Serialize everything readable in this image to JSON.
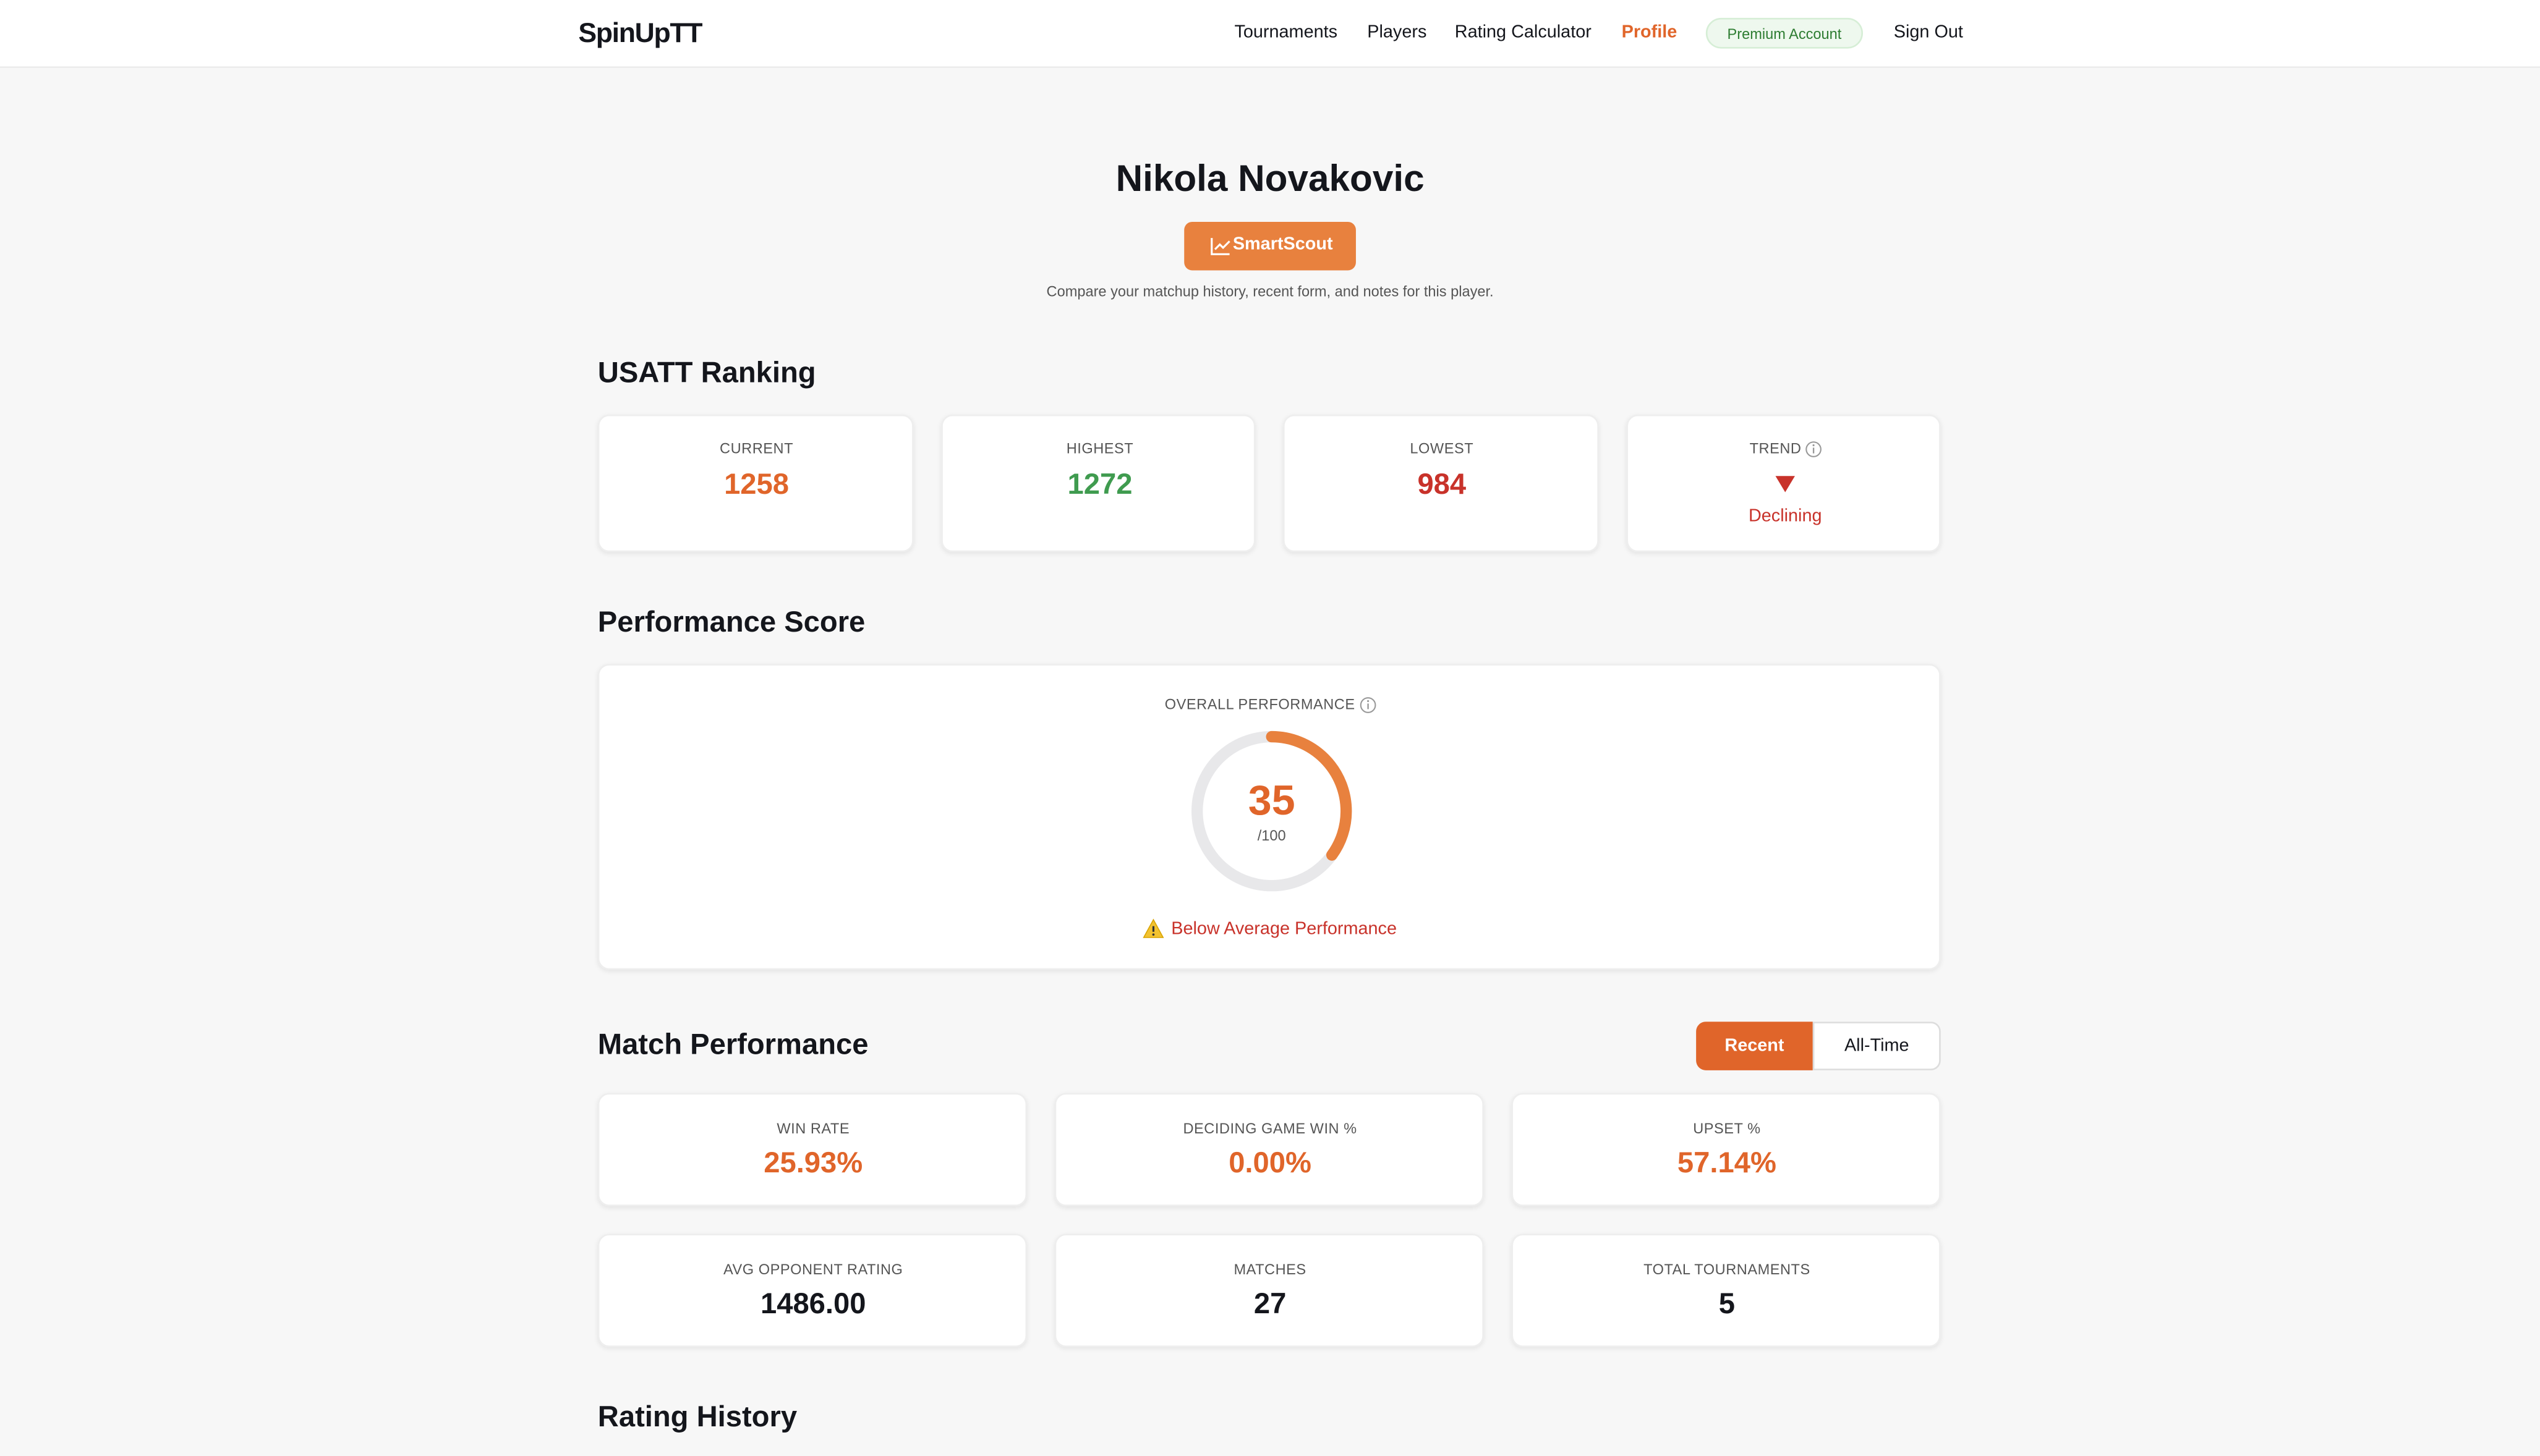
{
  "nav": {
    "logo": "SpinUpTT",
    "links": [
      "Tournaments",
      "Players",
      "Rating Calculator",
      "Profile"
    ],
    "badge": "Premium Account",
    "sign_out": "Sign Out"
  },
  "profile": {
    "name": "Nikola Novakovic",
    "button": "SmartScout",
    "subtitle": "Compare your matchup history, recent form, and notes for this player."
  },
  "ranking": {
    "title": "USATT Ranking",
    "cards": [
      {
        "label": "CURRENT",
        "value": "1258"
      },
      {
        "label": "HIGHEST",
        "value": "1272"
      },
      {
        "label": "LOWEST",
        "value": "984"
      },
      {
        "label": "TREND",
        "status": "Declining"
      }
    ]
  },
  "performance": {
    "title": "Performance Score",
    "label": "OVERALL PERFORMANCE",
    "score": "35",
    "max": "/100",
    "status": "Below Average Performance"
  },
  "match": {
    "title": "Match Performance",
    "tabs": [
      "Recent",
      "All-Time"
    ],
    "stats": [
      {
        "label": "WIN RATE",
        "value": "25.93%"
      },
      {
        "label": "DECIDING GAME WIN %",
        "value": "0.00%"
      },
      {
        "label": "UPSET %",
        "value": "57.14%"
      },
      {
        "label": "AVG OPPONENT RATING",
        "value": "1486.00"
      },
      {
        "label": "MATCHES",
        "value": "27"
      },
      {
        "label": "TOTAL TOURNAMENTS",
        "value": "5"
      }
    ]
  },
  "rating_history": {
    "title": "Rating History"
  }
}
